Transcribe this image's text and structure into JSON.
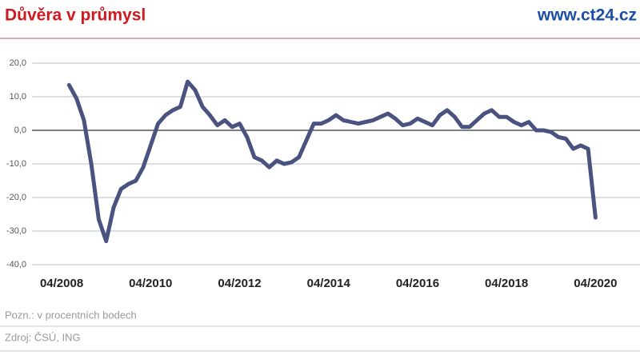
{
  "chart_data": {
    "type": "line",
    "title": "Důvěra v průmysl",
    "source_site": "www.ct24.cz",
    "note": "Pozn.: v procentních bodech",
    "source": "Zdroj: ČSÚ, ING",
    "x": [
      "06/2008",
      "08/2008",
      "10/2008",
      "12/2008",
      "02/2009",
      "04/2009",
      "06/2009",
      "08/2009",
      "10/2009",
      "12/2009",
      "02/2010",
      "04/2010",
      "06/2010",
      "08/2010",
      "10/2010",
      "12/2010",
      "02/2011",
      "04/2011",
      "06/2011",
      "08/2011",
      "10/2011",
      "12/2011",
      "02/2012",
      "04/2012",
      "06/2012",
      "08/2012",
      "10/2012",
      "12/2012",
      "02/2013",
      "04/2013",
      "06/2013",
      "08/2013",
      "10/2013",
      "12/2013",
      "02/2014",
      "04/2014",
      "06/2014",
      "08/2014",
      "10/2014",
      "12/2014",
      "02/2015",
      "04/2015",
      "06/2015",
      "08/2015",
      "10/2015",
      "12/2015",
      "02/2016",
      "04/2016",
      "06/2016",
      "08/2016",
      "10/2016",
      "12/2016",
      "02/2017",
      "04/2017",
      "06/2017",
      "08/2017",
      "10/2017",
      "12/2017",
      "02/2018",
      "04/2018",
      "06/2018",
      "08/2018",
      "10/2018",
      "12/2018",
      "02/2019",
      "04/2019",
      "06/2019",
      "08/2019",
      "10/2019",
      "12/2019",
      "02/2020",
      "04/2020"
    ],
    "series": [
      {
        "color": "#4a5280",
        "values": [
          13.5,
          9.5,
          3,
          -10,
          -26.5,
          -33,
          -23,
          -17.5,
          -16,
          -15,
          -11,
          -4.5,
          2,
          4.5,
          6,
          7,
          14.5,
          12,
          7,
          4.5,
          1.5,
          3,
          1,
          2,
          -2,
          -8,
          -9,
          -11,
          -9,
          -10,
          -9.5,
          -8,
          -3,
          2,
          2,
          3,
          4.5,
          3,
          2.5,
          2,
          2.5,
          3,
          4,
          5,
          3.5,
          1.5,
          2,
          3.5,
          2.5,
          1.5,
          4.5,
          6,
          4,
          1,
          1,
          3,
          5,
          6,
          4,
          4,
          2.5,
          1.5,
          2.5,
          0,
          0,
          -0.5,
          -2,
          -2.5,
          -5.5,
          -4.5,
          -5.5,
          -26
        ]
      }
    ],
    "xlim": [
      "08/2007",
      "04/2021"
    ],
    "xticks": [
      "04/2008",
      "04/2010",
      "04/2012",
      "04/2014",
      "04/2016",
      "04/2018",
      "04/2020"
    ],
    "ylim": [
      -40,
      20
    ],
    "yticks": [
      {
        "value": -40,
        "label": "-40,0"
      },
      {
        "value": -30,
        "label": "-30,0"
      },
      {
        "value": -20,
        "label": "-20,0"
      },
      {
        "value": -10,
        "label": "-10,0"
      },
      {
        "value": 0,
        "label": "0,0"
      },
      {
        "value": 10,
        "label": "10,0"
      },
      {
        "value": 20,
        "label": "20,0"
      }
    ],
    "grid": true
  }
}
